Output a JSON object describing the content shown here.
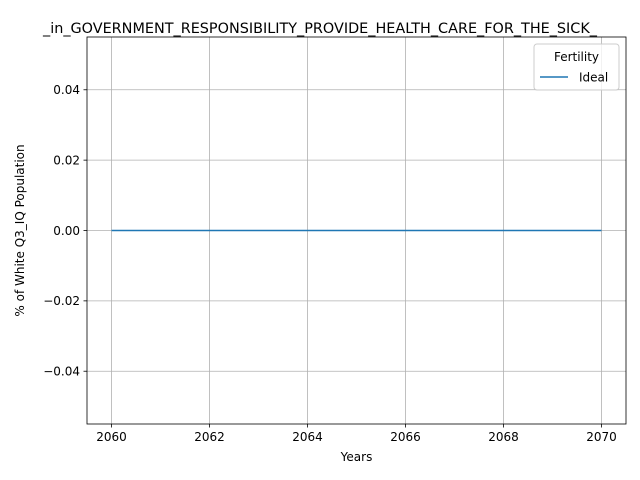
{
  "chart_data": {
    "type": "line",
    "title": "_in_GOVERNMENT_RESPONSIBILITY_PROVIDE_HEALTH_CARE_FOR_THE_SICK_",
    "xlabel": "Years",
    "ylabel": "% of White Q3_IQ Population",
    "xlim": [
      2059.5,
      2070.5
    ],
    "ylim": [
      -0.055,
      0.055
    ],
    "x_ticks": [
      2060,
      2062,
      2064,
      2066,
      2068,
      2070
    ],
    "y_ticks": [
      -0.04,
      -0.02,
      0.0,
      0.02,
      0.04
    ],
    "y_tick_labels": [
      "−0.04",
      "−0.02",
      "0.00",
      "0.02",
      "0.04"
    ],
    "grid": true,
    "legend": {
      "title": "Fertility",
      "placement": "top-right"
    },
    "series": [
      {
        "name": "Ideal",
        "color": "#1f77b4",
        "x": [
          2060,
          2061,
          2062,
          2063,
          2064,
          2065,
          2066,
          2067,
          2068,
          2069,
          2070
        ],
        "values": [
          0,
          0,
          0,
          0,
          0,
          0,
          0,
          0,
          0,
          0,
          0
        ]
      }
    ]
  }
}
